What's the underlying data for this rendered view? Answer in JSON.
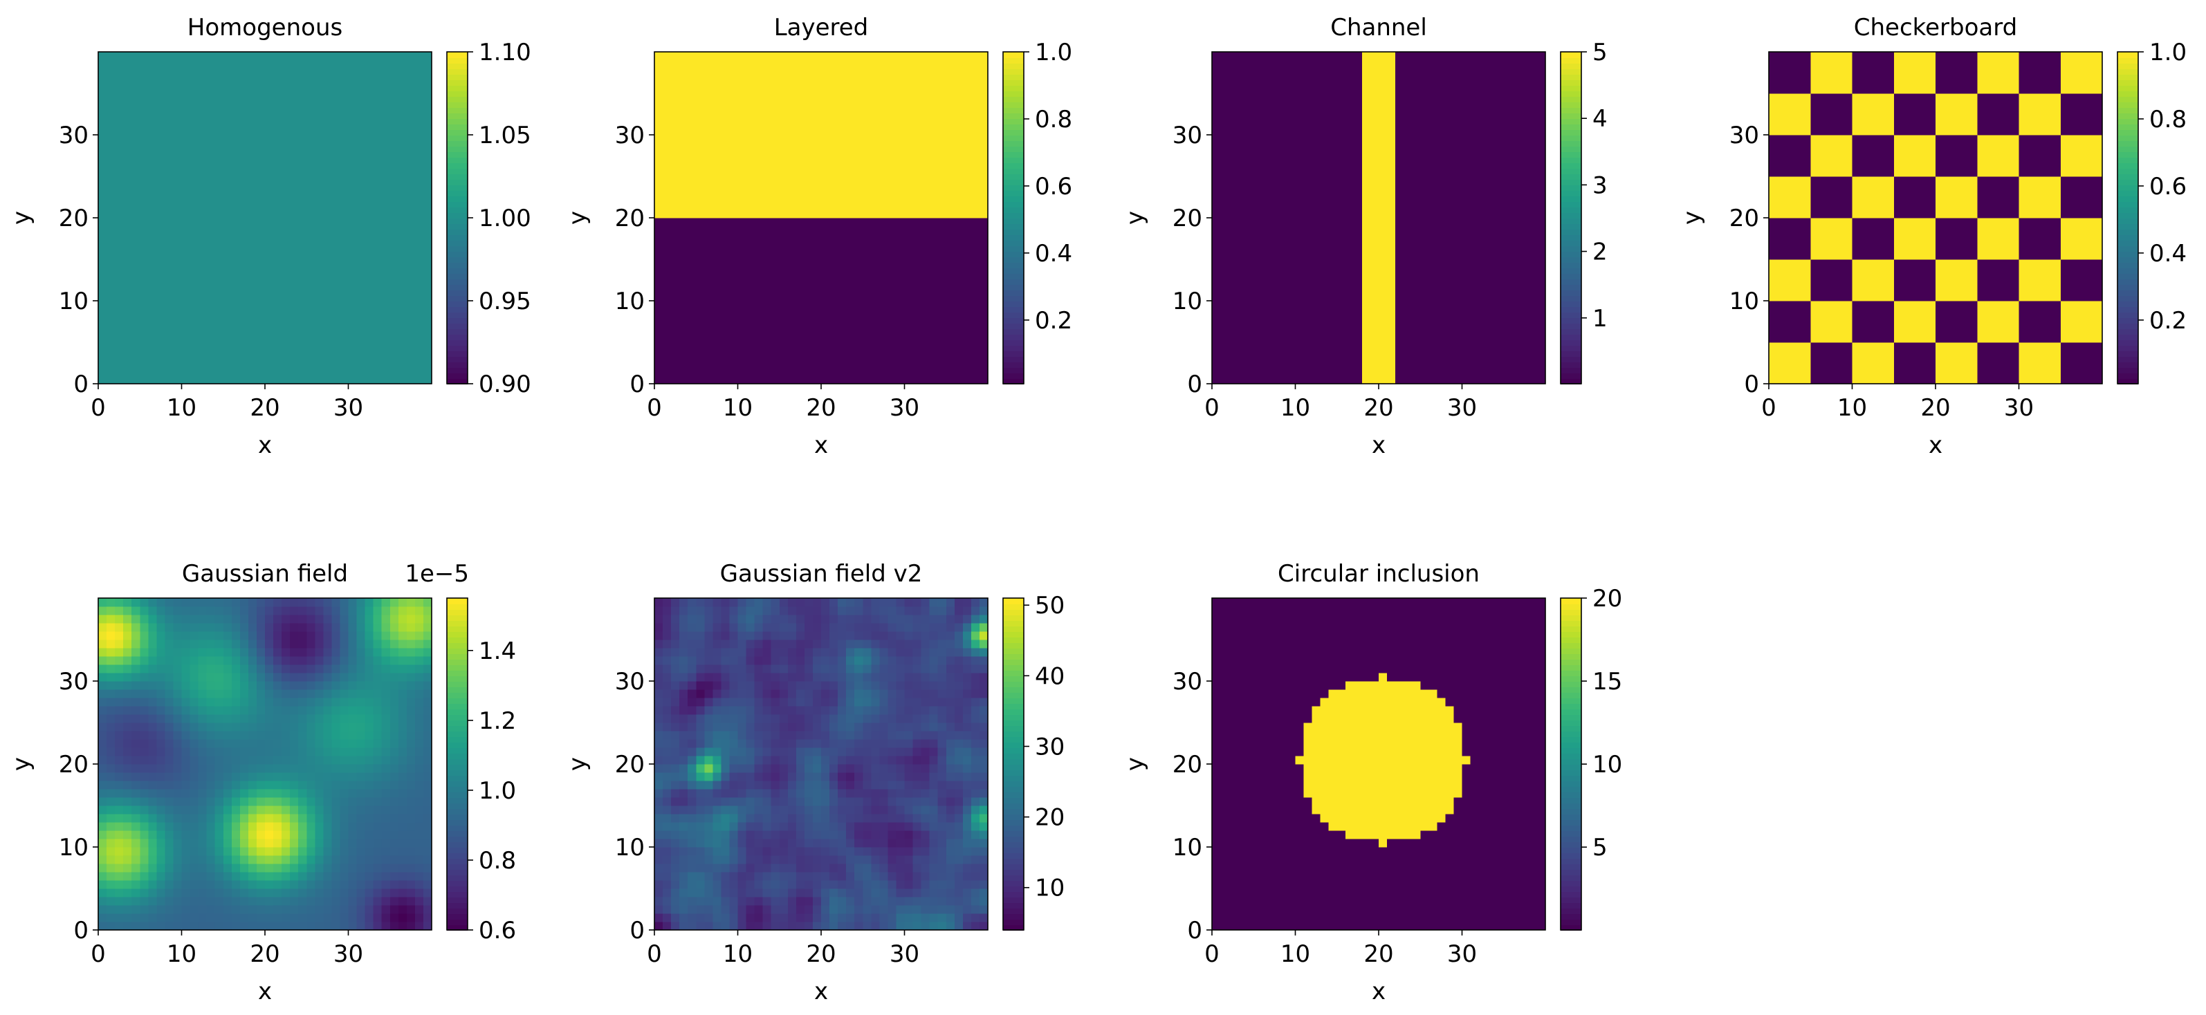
{
  "figure": {
    "background": "#ffffff"
  },
  "chart_data": [
    {
      "type": "heatmap",
      "title": "Homogenous",
      "xlabel": "x",
      "ylabel": "y",
      "xlim": [
        0,
        40
      ],
      "ylim": [
        0,
        40
      ],
      "xticks": [
        "0",
        "10",
        "20",
        "30"
      ],
      "yticks": [
        "0",
        "10",
        "20",
        "30"
      ],
      "field": {
        "kind": "constant",
        "value": 1.0
      },
      "colorbar": {
        "min": 0.9,
        "max": 1.1,
        "ticks": [
          0.9,
          0.95,
          1.0,
          1.05,
          1.1
        ],
        "tick_labels": [
          "0.90",
          "0.95",
          "1.00",
          "1.05",
          "1.10"
        ],
        "offset_label": ""
      }
    },
    {
      "type": "heatmap",
      "title": "Layered",
      "xlabel": "x",
      "ylabel": "y",
      "xlim": [
        0,
        40
      ],
      "ylim": [
        0,
        40
      ],
      "xticks": [
        "0",
        "10",
        "20",
        "30"
      ],
      "yticks": [
        "0",
        "10",
        "20",
        "30"
      ],
      "field": {
        "kind": "layers",
        "boundary_y": 20,
        "below": 0.01,
        "above": 1.0
      },
      "colorbar": {
        "min": 0.01,
        "max": 1.0,
        "ticks": [
          0.2,
          0.4,
          0.6,
          0.8,
          1.0
        ],
        "tick_labels": [
          "0.2",
          "0.4",
          "0.6",
          "0.8",
          "1.0"
        ],
        "offset_label": ""
      }
    },
    {
      "type": "heatmap",
      "title": "Channel",
      "xlabel": "x",
      "ylabel": "y",
      "xlim": [
        0,
        40
      ],
      "ylim": [
        0,
        40
      ],
      "xticks": [
        "0",
        "10",
        "20",
        "30"
      ],
      "yticks": [
        "0",
        "10",
        "20",
        "30"
      ],
      "field": {
        "kind": "channel",
        "x_from": 18,
        "x_to": 22,
        "background": 0.01,
        "channel": 5.0
      },
      "colorbar": {
        "min": 0.01,
        "max": 5.0,
        "ticks": [
          1,
          2,
          3,
          4,
          5
        ],
        "tick_labels": [
          "1",
          "2",
          "3",
          "4",
          "5"
        ],
        "offset_label": ""
      }
    },
    {
      "type": "heatmap",
      "title": "Checkerboard",
      "xlabel": "x",
      "ylabel": "y",
      "xlim": [
        0,
        40
      ],
      "ylim": [
        0,
        40
      ],
      "xticks": [
        "0",
        "10",
        "20",
        "30"
      ],
      "yticks": [
        "0",
        "10",
        "20",
        "30"
      ],
      "field": {
        "kind": "checker",
        "cell": 5,
        "low": 0.01,
        "high": 1.0,
        "high_at_origin": true
      },
      "colorbar": {
        "min": 0.01,
        "max": 1.0,
        "ticks": [
          0.2,
          0.4,
          0.6,
          0.8,
          1.0
        ],
        "tick_labels": [
          "0.2",
          "0.4",
          "0.6",
          "0.8",
          "1.0"
        ],
        "offset_label": ""
      }
    },
    {
      "type": "heatmap",
      "title": "Gaussian field",
      "xlabel": "x",
      "ylabel": "y",
      "xlim": [
        0,
        40
      ],
      "ylim": [
        0,
        40
      ],
      "xticks": [
        "0",
        "10",
        "20",
        "30"
      ],
      "yticks": [
        "0",
        "10",
        "20",
        "30"
      ],
      "field": {
        "kind": "blobs",
        "base": 0.9,
        "clip": [
          0.6,
          1.55
        ],
        "blobs": [
          {
            "x": 1,
            "y": 35,
            "a": 0.65,
            "s": 3.5
          },
          {
            "x": 2,
            "y": 9,
            "a": 0.55,
            "s": 4
          },
          {
            "x": 20,
            "y": 11,
            "a": 0.65,
            "s": 4
          },
          {
            "x": 37,
            "y": 37,
            "a": 0.55,
            "s": 4
          },
          {
            "x": 14,
            "y": 30,
            "a": 0.3,
            "s": 5
          },
          {
            "x": 30,
            "y": 24,
            "a": 0.25,
            "s": 5
          },
          {
            "x": 23,
            "y": 34,
            "a": -0.3,
            "s": 4
          },
          {
            "x": 36,
            "y": 1,
            "a": -0.3,
            "s": 3
          },
          {
            "x": 5,
            "y": 22,
            "a": -0.15,
            "s": 4
          }
        ]
      },
      "colorbar": {
        "min": 0.6,
        "max": 1.55,
        "ticks": [
          0.6,
          0.8,
          1.0,
          1.2,
          1.4
        ],
        "tick_labels": [
          "0.6",
          "0.8",
          "1.0",
          "1.2",
          "1.4"
        ],
        "offset_label": "1e−5"
      }
    },
    {
      "type": "heatmap",
      "title": "Gaussian field v2",
      "xlabel": "x",
      "ylabel": "y",
      "xlim": [
        0,
        40
      ],
      "ylim": [
        0,
        40
      ],
      "xticks": [
        "0",
        "10",
        "20",
        "30"
      ],
      "yticks": [
        "0",
        "10",
        "20",
        "30"
      ],
      "field": {
        "kind": "noise",
        "base": 14,
        "amp": 9,
        "seed": 7,
        "clip": [
          4,
          51
        ],
        "hotspots": [
          {
            "x": 39,
            "y": 35,
            "a": 34,
            "s": 1.3
          },
          {
            "x": 6,
            "y": 19,
            "a": 24,
            "s": 1.3
          },
          {
            "x": 39,
            "y": 13,
            "a": 16,
            "s": 1.2
          },
          {
            "x": 24,
            "y": 32,
            "a": 10,
            "s": 1.5
          },
          {
            "x": 8,
            "y": 13,
            "a": 8,
            "s": 1.5
          }
        ]
      },
      "colorbar": {
        "min": 4,
        "max": 51,
        "ticks": [
          10,
          20,
          30,
          40,
          50
        ],
        "tick_labels": [
          "10",
          "20",
          "30",
          "40",
          "50"
        ],
        "offset_label": ""
      }
    },
    {
      "type": "heatmap",
      "title": "Circular inclusion",
      "xlabel": "x",
      "ylabel": "y",
      "xlim": [
        0,
        40
      ],
      "ylim": [
        0,
        40
      ],
      "xticks": [
        "0",
        "10",
        "20",
        "30"
      ],
      "yticks": [
        "0",
        "10",
        "20",
        "30"
      ],
      "field": {
        "kind": "circle",
        "cx": 20,
        "cy": 20,
        "r": 10,
        "inside": 20.0,
        "outside": 0.01
      },
      "colorbar": {
        "min": 0.01,
        "max": 20.0,
        "ticks": [
          5,
          10,
          15,
          20
        ],
        "tick_labels": [
          "5",
          "10",
          "15",
          "20"
        ],
        "offset_label": ""
      }
    }
  ]
}
